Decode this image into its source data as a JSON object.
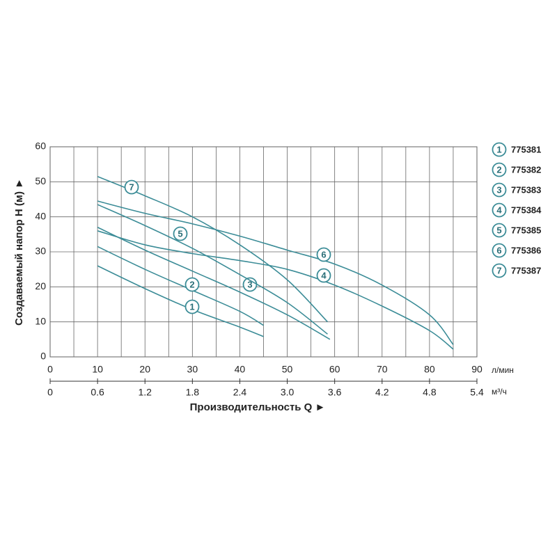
{
  "chart_data": {
    "type": "line",
    "ylabel": "Создаваемый напор H (м) ►",
    "xlabel": "Производительность Q ►",
    "x_unit": "л/мин",
    "x2_unit": "м³/ч",
    "xlim": [
      0,
      90
    ],
    "xticks": [
      0,
      10,
      20,
      30,
      40,
      50,
      60,
      70,
      80,
      90
    ],
    "x_minor_grid": [
      5,
      15,
      25,
      35,
      45,
      55,
      65,
      75,
      85
    ],
    "x2lim": [
      0,
      5.4
    ],
    "x2ticks": [
      0,
      0.6,
      1.2,
      1.8,
      2.4,
      {
        "value": 3,
        "label": "3.0"
      },
      3.6,
      4.2,
      4.8,
      5.4
    ],
    "ylim": [
      0,
      60
    ],
    "yticks": [
      0,
      10,
      20,
      30,
      40,
      50,
      60
    ],
    "grid": true,
    "color": "#3b8c97",
    "series": [
      {
        "label": "1",
        "name": "775381",
        "x": [
          10,
          20,
          30,
          40,
          45
        ],
        "values": [
          26,
          19.5,
          13.5,
          8.5,
          5.8
        ]
      },
      {
        "label": "2",
        "name": "775382",
        "x": [
          10,
          20,
          30,
          40,
          45
        ],
        "values": [
          31.5,
          25,
          19,
          13,
          9
        ]
      },
      {
        "label": "3",
        "name": "775383",
        "x": [
          10,
          20,
          30,
          40,
          50,
          59
        ],
        "values": [
          37,
          30.5,
          24.5,
          18.5,
          12,
          5
        ]
      },
      {
        "label": "4",
        "name": "775384",
        "x": [
          10,
          20,
          30,
          40,
          50,
          60,
          70,
          80,
          85
        ],
        "values": [
          36,
          32,
          29.5,
          27.5,
          25,
          20.5,
          14.5,
          7.5,
          2.2
        ]
      },
      {
        "label": "5",
        "name": "775385",
        "x": [
          10,
          20,
          30,
          40,
          50,
          58.5
        ],
        "values": [
          43.5,
          37.5,
          31,
          23.5,
          15.5,
          6.5
        ]
      },
      {
        "label": "6",
        "name": "775386",
        "x": [
          10,
          20,
          30,
          40,
          50,
          60,
          70,
          80,
          85
        ],
        "values": [
          44.5,
          41,
          38,
          34.5,
          30.5,
          26.5,
          20.5,
          12,
          3.5
        ]
      },
      {
        "label": "7",
        "name": "775387",
        "x": [
          10,
          20,
          30,
          40,
          50,
          58.5
        ],
        "values": [
          51.5,
          46,
          40,
          32,
          22,
          10
        ]
      }
    ]
  }
}
